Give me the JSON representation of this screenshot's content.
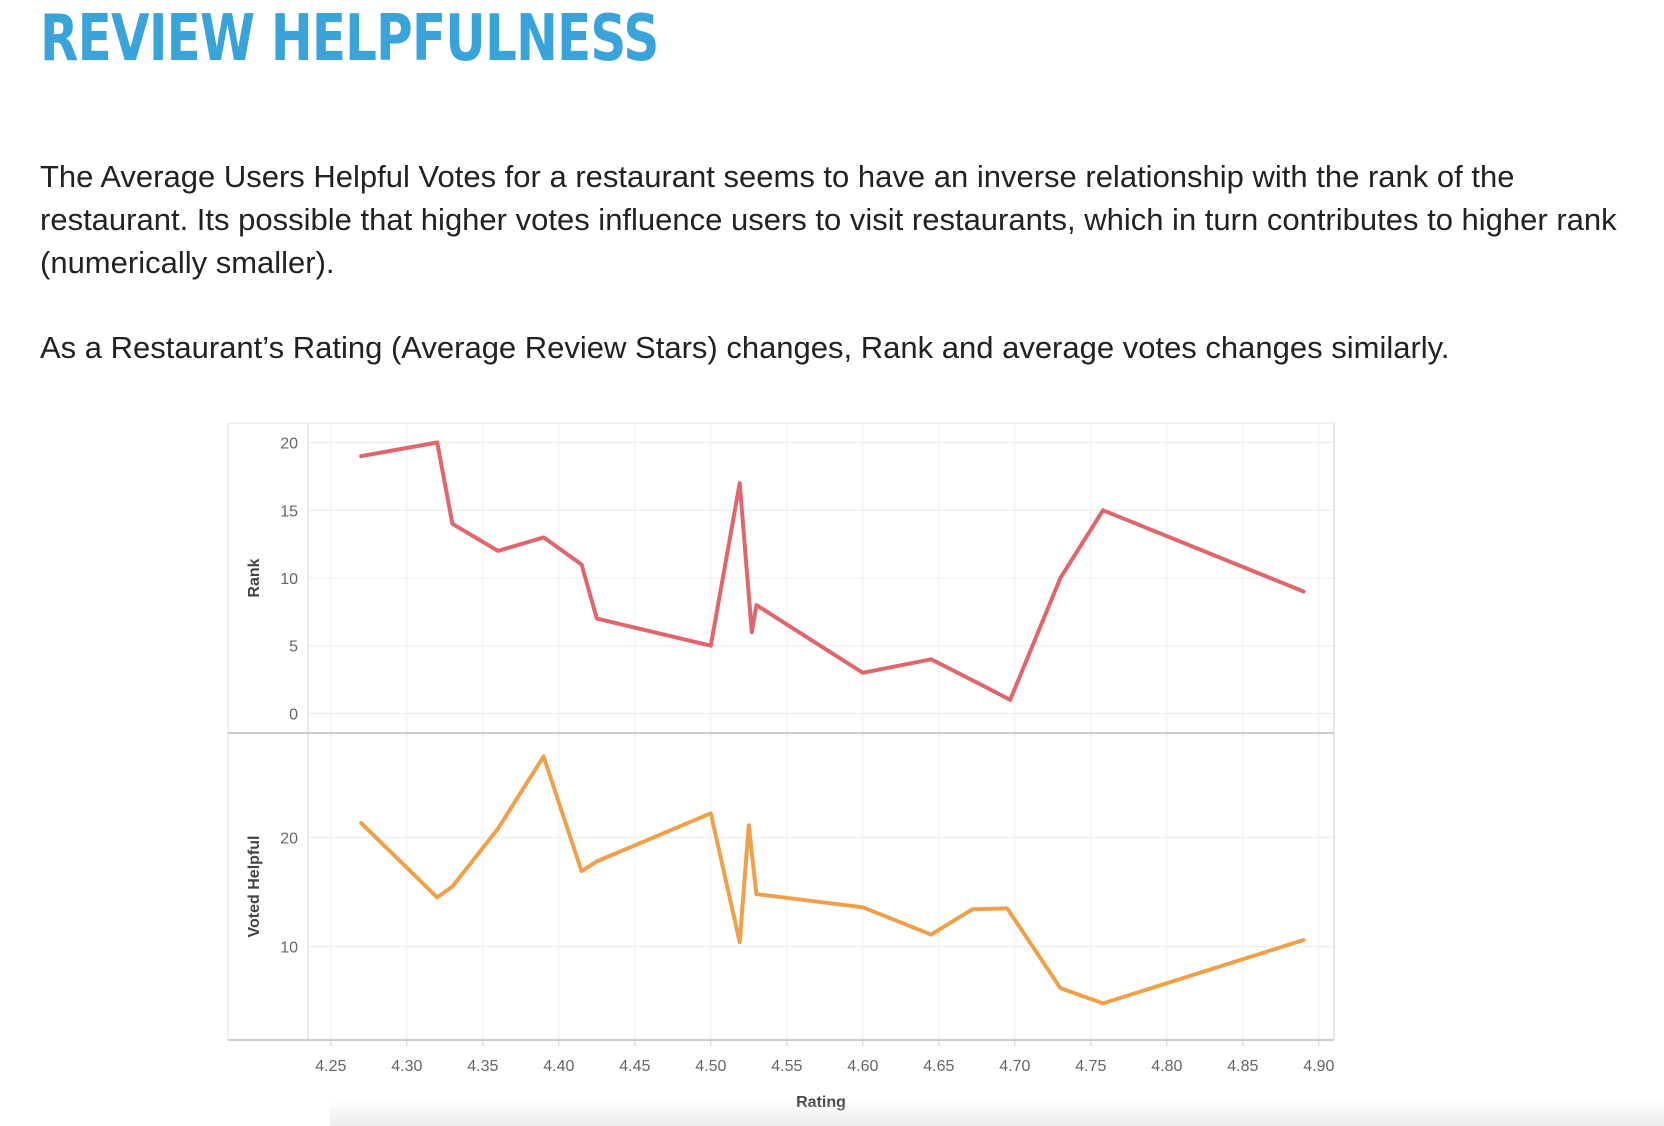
{
  "page": {
    "title": "REVIEW HELPFULNESS",
    "paragraph1": "The Average Users Helpful Votes for a restaurant seems to have an inverse relationship with the rank of the restaurant. Its possible that higher votes influence users to visit restaurants, which in turn contributes to higher rank (numerically smaller).",
    "paragraph2": "As a Restaurant’s Rating (Average Review Stars) changes, Rank and average votes changes similarly."
  },
  "chart_data": {
    "type": "line",
    "xlabel": "Rating",
    "xlim": [
      4.235,
      4.91
    ],
    "x_ticks": [
      "4.25",
      "4.30",
      "4.35",
      "4.40",
      "4.45",
      "4.50",
      "4.55",
      "4.60",
      "4.65",
      "4.70",
      "4.75",
      "4.80",
      "4.85",
      "4.90"
    ],
    "grid": true,
    "panels": [
      {
        "ylabel": "Rank",
        "ylim": [
          -1,
          21
        ],
        "y_ticks": [
          "0",
          "5",
          "10",
          "15",
          "20"
        ],
        "color": "#e0666b",
        "x": [
          4.27,
          4.32,
          4.33,
          4.36,
          4.39,
          4.415,
          4.425,
          4.5,
          4.519,
          4.527,
          4.53,
          4.6,
          4.645,
          4.68,
          4.697,
          4.73,
          4.758,
          4.89
        ],
        "y": [
          19,
          20,
          14,
          12,
          13,
          11,
          7,
          5,
          17,
          6,
          8,
          3,
          4,
          2,
          1,
          10,
          15,
          9
        ]
      },
      {
        "ylabel": "Voted Helpful",
        "ylim": [
          2,
          29
        ],
        "y_ticks": [
          "10",
          "20"
        ],
        "color": "#f0a048",
        "x": [
          4.27,
          4.32,
          4.33,
          4.36,
          4.39,
          4.415,
          4.425,
          4.5,
          4.519,
          4.525,
          4.53,
          4.6,
          4.645,
          4.672,
          4.695,
          4.73,
          4.758,
          4.89
        ],
        "y": [
          21.3,
          14.5,
          15.5,
          20.8,
          27.4,
          16.9,
          17.8,
          22.2,
          10.4,
          21.1,
          14.8,
          13.6,
          11.1,
          13.4,
          13.5,
          6.2,
          4.8,
          10.6
        ]
      }
    ]
  }
}
